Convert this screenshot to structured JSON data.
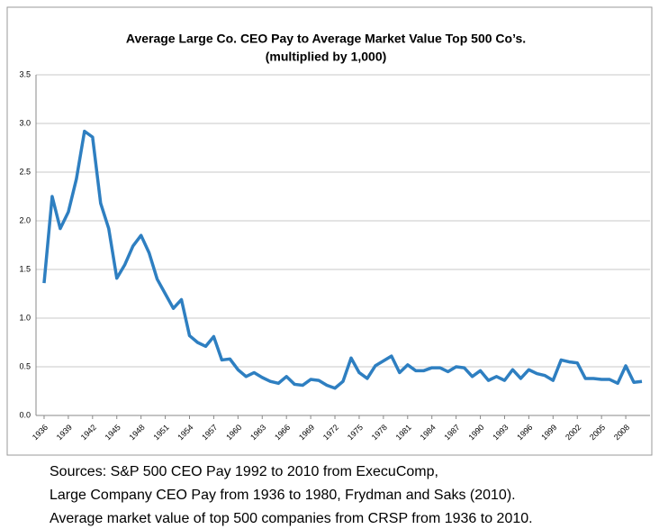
{
  "chart_data": {
    "type": "line",
    "title": [
      "Average Large Co. CEO Pay to Average Market Value Top 500 Co’s.",
      "(multiplied by 1,000)"
    ],
    "x": [
      1936,
      1937,
      1938,
      1939,
      1940,
      1941,
      1942,
      1943,
      1944,
      1945,
      1946,
      1947,
      1948,
      1949,
      1950,
      1951,
      1952,
      1953,
      1954,
      1955,
      1956,
      1957,
      1958,
      1959,
      1960,
      1961,
      1962,
      1963,
      1964,
      1965,
      1966,
      1967,
      1968,
      1969,
      1970,
      1971,
      1972,
      1973,
      1974,
      1975,
      1976,
      1977,
      1978,
      1979,
      1980,
      1981,
      1982,
      1983,
      1984,
      1985,
      1986,
      1987,
      1988,
      1989,
      1990,
      1991,
      1992,
      1993,
      1994,
      1995,
      1996,
      1997,
      1998,
      1999,
      2000,
      2001,
      2002,
      2003,
      2004,
      2005,
      2006,
      2007,
      2008,
      2009,
      2010
    ],
    "values": [
      1.36,
      2.25,
      1.92,
      2.09,
      2.43,
      2.92,
      2.86,
      2.18,
      1.92,
      1.41,
      1.55,
      1.74,
      1.85,
      1.67,
      1.4,
      1.25,
      1.1,
      1.19,
      0.82,
      0.75,
      0.71,
      0.81,
      0.57,
      0.58,
      0.47,
      0.4,
      0.44,
      0.39,
      0.35,
      0.33,
      0.4,
      0.32,
      0.31,
      0.37,
      0.36,
      0.31,
      0.28,
      0.35,
      0.59,
      0.44,
      0.38,
      0.51,
      0.56,
      0.61,
      0.44,
      0.52,
      0.46,
      0.46,
      0.49,
      0.49,
      0.45,
      0.5,
      0.49,
      0.4,
      0.46,
      0.36,
      0.4,
      0.36,
      0.47,
      0.38,
      0.47,
      0.43,
      0.41,
      0.36,
      0.57,
      0.55,
      0.54,
      0.38,
      0.38,
      0.37,
      0.37,
      0.33,
      0.51,
      0.34,
      0.35
    ],
    "color": "#2e7fc1",
    "xlim": [
      1935,
      2011
    ],
    "xticks": [
      1936,
      1939,
      1942,
      1945,
      1948,
      1951,
      1954,
      1957,
      1960,
      1963,
      1966,
      1969,
      1972,
      1975,
      1978,
      1981,
      1984,
      1987,
      1990,
      1993,
      1996,
      1999,
      2002,
      2005,
      2008
    ],
    "ylim": [
      0,
      3.5
    ],
    "yticks": [
      {
        "value": 0,
        "label": "0.0"
      },
      0.5,
      {
        "value": 1,
        "label": "1.0"
      },
      1.5,
      {
        "value": 2,
        "label": "2.0"
      },
      2.5,
      {
        "value": 3,
        "label": "3.0"
      },
      3.5
    ],
    "grid": true,
    "source": [
      "Sources: S&P 500 CEO Pay 1992 to 2010 from ExecuComp,",
      "Large Company CEO Pay from 1936 to 1980, Frydman and Saks (2010).",
      "Average market value of top 500 companies from CRSP from 1936 to 2010."
    ]
  }
}
